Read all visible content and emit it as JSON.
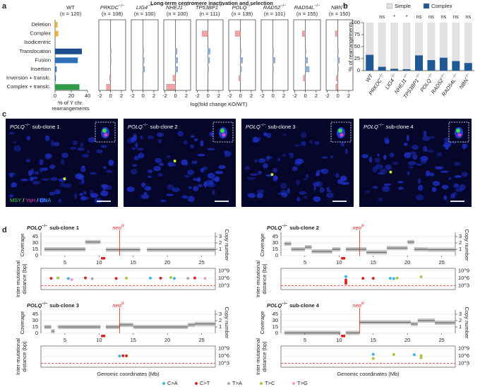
{
  "figure_title": "Long-term centromere inactivation and selection",
  "panel_labels": [
    "a",
    "b",
    "c",
    "d"
  ],
  "ko_xlabel": "log(fold change KO/WT)",
  "chart_data": [
    {
      "type": "hbar",
      "title": "WT",
      "subtitle": "(n = 120)",
      "categories": [
        "Deletion",
        "Complex",
        "Isodicentric",
        "Translocation",
        "Fusion",
        "Insertion",
        "Inversion + translc.",
        "Complex + translc."
      ],
      "values": [
        3,
        4,
        0,
        33,
        28,
        2,
        1,
        30
      ],
      "colors": [
        "#e8b23a",
        "#e8b23a",
        "#1f4e8c",
        "#1f4e8c",
        "#2f6fb8",
        "#2f6fb8",
        "#2f6fb8",
        "#2e9a4a"
      ],
      "xlim": [
        0,
        40
      ],
      "xticks": [
        0,
        20,
        40
      ],
      "xlabel": [
        "% of Y chr.",
        "rearrangements"
      ]
    },
    {
      "type": "fold",
      "gene": "PRKDC",
      "genotype": "−/−",
      "subtitle": "(n = 108)",
      "values": [
        0,
        0,
        0,
        0.1,
        0.1,
        0,
        -0.2,
        -0.8
      ],
      "xlim": [
        -2.2,
        2.8
      ],
      "xticks": [
        -2,
        0,
        2
      ],
      "colors": {
        "negative": "#f2a3a3",
        "positive": "#8fb3e0"
      }
    },
    {
      "type": "fold",
      "gene": "LIG4",
      "genotype": "−/−",
      "subtitle": "(n = 100)",
      "values": [
        0,
        0,
        0,
        0.1,
        0.2,
        0.3,
        -0.1,
        -0.1
      ],
      "xlim": [
        -2.2,
        2.8
      ],
      "xticks": [
        -2,
        0,
        2
      ],
      "colors": {
        "negative": "#f2a3a3",
        "positive": "#8fb3e0"
      }
    },
    {
      "type": "fold",
      "gene": "NHEJ1",
      "genotype": "−/−",
      "subtitle": "(n = 100)",
      "values": [
        0,
        0,
        0,
        0.3,
        0.4,
        0.4,
        -0.5,
        -1.7
      ],
      "xlim": [
        -2.2,
        2.8
      ],
      "xticks": [
        -2,
        0,
        2
      ],
      "colors": {
        "negative": "#f2a3a3",
        "positive": "#8fb3e0"
      }
    },
    {
      "type": "fold",
      "gene": "TP53BP1",
      "genotype": "−/−",
      "subtitle": "(n = 111)",
      "values": [
        0,
        -1.1,
        0,
        0.4,
        0.3,
        0.1,
        0,
        -0.1
      ],
      "xlim": [
        -2.2,
        2.8
      ],
      "xticks": [
        -2,
        0,
        2
      ],
      "colors": {
        "negative": "#f2a3a3",
        "positive": "#8fb3e0"
      }
    },
    {
      "type": "fold",
      "gene": "POLQ",
      "genotype": "−/−",
      "subtitle": "(n = 139)",
      "values": [
        0,
        -1.0,
        0,
        0.1,
        0.4,
        0.2,
        -0.3,
        0
      ],
      "xlim": [
        -2.2,
        2.8
      ],
      "xticks": [
        -2,
        0,
        2
      ],
      "colors": {
        "negative": "#f2a3a3",
        "positive": "#8fb3e0"
      }
    },
    {
      "type": "fold",
      "gene": "RAD52",
      "genotype": "−/−",
      "subtitle": "(n = 101)",
      "values": [
        0,
        0,
        0,
        0.1,
        0.4,
        0.1,
        -0.1,
        -0.1
      ],
      "xlim": [
        -2.2,
        2.8
      ],
      "xticks": [
        -2,
        0,
        2
      ],
      "colors": {
        "negative": "#f2a3a3",
        "positive": "#8fb3e0"
      }
    },
    {
      "type": "fold",
      "gene": "RAD54L",
      "genotype": "−/−",
      "subtitle": "(n = 155)",
      "values": [
        0,
        -0.6,
        0,
        0.1,
        0.4,
        0.7,
        -0.4,
        0
      ],
      "xlim": [
        -2.2,
        2.8
      ],
      "xticks": [
        -2,
        0,
        2
      ],
      "colors": {
        "negative": "#f2a3a3",
        "positive": "#8fb3e0"
      }
    },
    {
      "type": "fold",
      "gene": "NBN",
      "genotype": "−/−",
      "subtitle": "(n = 150)",
      "values": [
        0,
        -0.5,
        0,
        0.1,
        0.3,
        0.1,
        -0.3,
        -0.4
      ],
      "xlim": [
        -2.2,
        2.8
      ],
      "xticks": [
        -2,
        0,
        2
      ],
      "colors": {
        "negative": "#f2a3a3",
        "positive": "#8fb3e0"
      }
    },
    {
      "type": "stacked_bar",
      "categories": [
        {
          "gene": "WT"
        },
        {
          "gene": "PRKDC",
          "genotype": "−/−"
        },
        {
          "gene": "LIG4",
          "genotype": "−/−"
        },
        {
          "gene": "NHEJ1",
          "genotype": "−/−"
        },
        {
          "gene": "TP53BP1",
          "genotype": "−/−"
        },
        {
          "gene": "POLQ",
          "genotype": "−/−"
        },
        {
          "gene": "RAD52",
          "genotype": "−/−"
        },
        {
          "gene": "RAD54L",
          "genotype": "−/−"
        },
        {
          "gene": "NBN",
          "genotype": "−/−"
        }
      ],
      "series": [
        {
          "name": "Complex",
          "color": "#1f5a96",
          "values": [
            33,
            8,
            4,
            3,
            32,
            22,
            27,
            20,
            16
          ]
        },
        {
          "name": "Simple",
          "color": "#e2e2e2",
          "values": [
            67,
            92,
            96,
            97,
            68,
            78,
            73,
            80,
            84
          ]
        }
      ],
      "annotations": [
        null,
        "ns",
        "*",
        "*",
        "ns",
        "ns",
        "ns",
        "ns",
        "ns"
      ],
      "ylim": [
        0,
        100
      ],
      "yticks": [
        0,
        25,
        50,
        75,
        100
      ],
      "ylabel": "% of rearrangements"
    },
    {
      "type": "genome",
      "gene": "POLQ",
      "genotype": "−/−",
      "label": "sub-clone 1",
      "segments": {
        "start": [
          2,
          8,
          11,
          17
        ],
        "end": [
          8,
          10.2,
          16,
          27
        ],
        "values": [
          15,
          32,
          14,
          14
        ]
      },
      "series": [
        {
          "name": "C>A",
          "color": "#3cb4e6",
          "x": [
            5.5,
            17.5,
            21
          ],
          "y": [
            800000,
            1200000,
            900000
          ]
        },
        {
          "name": "C>T",
          "color": "#d62728",
          "x": [
            3,
            8,
            12.5,
            19,
            24
          ],
          "y": [
            1000000,
            1500000,
            900000,
            1100000,
            1300000
          ]
        },
        {
          "name": "T>A",
          "color": "#aaaaaa",
          "x": [
            9,
            23
          ],
          "y": [
            700000,
            1000000
          ]
        },
        {
          "name": "T>C",
          "color": "#a8c83c",
          "x": [
            4,
            14,
            20.5
          ],
          "y": [
            1500000,
            1200000,
            2000000
          ]
        },
        {
          "name": "T>G",
          "color": "#f0a0c8",
          "x": [
            6,
            25.5
          ],
          "y": [
            300000,
            900000
          ]
        }
      ]
    },
    {
      "type": "genome",
      "gene": "POLQ",
      "genotype": "−/−",
      "label": "sub-clone 2",
      "segments": {
        "start": [
          2,
          3,
          5,
          6,
          9,
          11,
          14,
          17,
          20,
          21,
          23
        ],
        "end": [
          3,
          5,
          6,
          9,
          10.2,
          14,
          17,
          20,
          21,
          23,
          27
        ],
        "values": [
          28,
          15,
          20,
          10,
          15,
          15,
          8,
          18,
          32,
          15,
          14
        ]
      },
      "series": [
        {
          "name": "C>A",
          "color": "#3cb4e6",
          "x": [
            11,
            17.5,
            18
          ],
          "y": [
            5000000,
            1000000,
            800000
          ]
        },
        {
          "name": "C>T",
          "color": "#d62728",
          "x": [
            11,
            11,
            11,
            13.5,
            15
          ],
          "y": [
            200000,
            40000,
            10000,
            1000000,
            1000000
          ]
        },
        {
          "name": "T>C",
          "color": "#a8c83c",
          "x": [
            18.5,
            22
          ],
          "y": [
            1200000,
            4000000
          ]
        }
      ]
    },
    {
      "type": "genome",
      "gene": "POLQ",
      "genotype": "−/−",
      "label": "sub-clone 3",
      "segments": {
        "start": [
          2,
          3,
          4,
          11,
          13,
          15,
          23,
          24
        ],
        "end": [
          3,
          3.5,
          10.2,
          13,
          15,
          23,
          24,
          27
        ],
        "values": [
          15,
          5,
          15,
          15,
          20,
          15,
          20,
          22
        ]
      },
      "series": [
        {
          "name": "C>A",
          "color": "#3cb4e6",
          "x": [
            13
          ],
          "y": [
            1000000
          ]
        },
        {
          "name": "C>T",
          "color": "#d62728",
          "x": [
            13.5,
            14
          ],
          "y": [
            1200000,
            1100000
          ]
        }
      ]
    },
    {
      "type": "genome",
      "gene": "POLQ",
      "genotype": "−/−",
      "label": "sub-clone 4",
      "segments": {
        "start": [
          2,
          11,
          13,
          20.5,
          21.5,
          24
        ],
        "end": [
          10.2,
          13,
          20.5,
          21.5,
          24,
          27
        ],
        "values": [
          1,
          1,
          26,
          22,
          30,
          25
        ]
      },
      "series": [
        {
          "name": "C>A",
          "color": "#3cb4e6",
          "x": [
            15,
            21
          ],
          "y": [
            5000000,
            3000000
          ]
        },
        {
          "name": "T>C",
          "color": "#a8c83c",
          "x": [
            15,
            18,
            22,
            22
          ],
          "y": [
            100000,
            4000000,
            1500000,
            200000
          ]
        }
      ]
    }
  ],
  "microscopy": {
    "images": [
      {
        "gene": "POLQ",
        "genotype": "−/−",
        "label": "sub-clone 1"
      },
      {
        "gene": "POLQ",
        "genotype": "−/−",
        "label": "sub-clone 2"
      },
      {
        "gene": "POLQ",
        "genotype": "−/−",
        "label": "sub-clone 3"
      },
      {
        "gene": "POLQ",
        "genotype": "−/−",
        "label": "sub-clone 4"
      }
    ],
    "stains": [
      {
        "name": "MSY",
        "color": "#3ddc3d"
      },
      {
        "name": "YqH",
        "color": "#e040c0"
      },
      {
        "name": "DNA",
        "color": "#3fa9f5"
      }
    ],
    "separator": "/"
  },
  "genome_axes": {
    "xlim": [
      1.5,
      27
    ],
    "xticks": [
      5,
      10,
      15,
      20,
      25
    ],
    "ylim": [
      0,
      50
    ],
    "yticks": [
      0,
      15,
      30,
      45
    ],
    "ylabel": "Coverage",
    "y2lim": [
      0,
      3.333
    ],
    "y2ticks": [
      1,
      2,
      3
    ],
    "y2label": "Copy number",
    "mut_ylim": [
      30,
      10000000000
    ],
    "mut_log_scale": true,
    "mut_yticks": [
      {
        "value": 1000,
        "label": "10^3"
      },
      {
        "value": 1000000,
        "label": "10^6"
      },
      {
        "value": 1000000000,
        "label": "10^9"
      }
    ],
    "mut_ylabel": [
      "Inter-mutational",
      "distance (bp)"
    ],
    "xlabel": "Genomic coordinates (Mb)",
    "neo": "neo",
    "neo_sup": "R",
    "neo_position": 13,
    "centromere": 10.6
  }
}
